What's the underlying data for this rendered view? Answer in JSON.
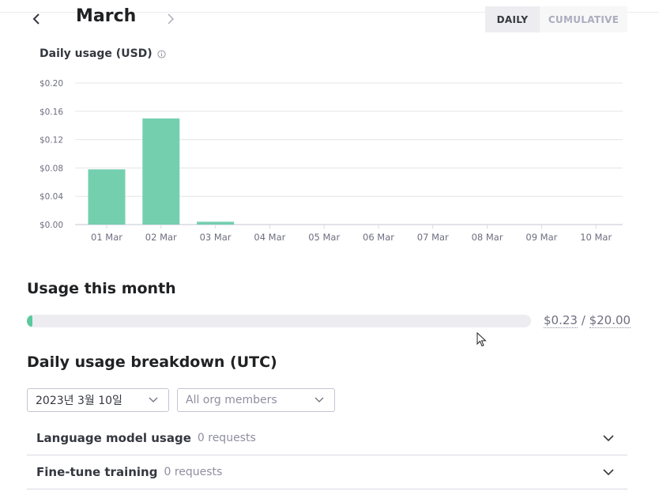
{
  "header": {
    "month": "March",
    "toggle": {
      "daily": "DAILY",
      "cumulative": "CUMULATIVE",
      "selected": "daily"
    }
  },
  "chart_title": "Daily usage (USD)",
  "icons": {
    "prev": "chevron-left-icon",
    "next": "chevron-right-icon",
    "info": "info-icon",
    "dropdown": "chevron-down-icon",
    "cursor": "mouse-cursor-icon"
  },
  "colors": {
    "accent": "#74cfaf",
    "progress": "#5ac99e",
    "grid": "#e5e5ea",
    "axis": "#d9d9e3"
  },
  "chart_data": {
    "type": "bar",
    "categories": [
      "01 Mar",
      "02 Mar",
      "03 Mar",
      "04 Mar",
      "05 Mar",
      "06 Mar",
      "07 Mar",
      "08 Mar",
      "09 Mar",
      "10 Mar"
    ],
    "values": [
      0.078,
      0.15,
      0.004,
      0,
      0,
      0,
      0,
      0,
      0,
      0
    ],
    "title": "Daily usage (USD)",
    "yticks": [
      "$0.00",
      "$0.04",
      "$0.08",
      "$0.12",
      "$0.16",
      "$0.20"
    ],
    "ylim": [
      0,
      0.2
    ],
    "grid": true
  },
  "usage": {
    "title": "Usage this month",
    "used": "$0.23",
    "separator": "/",
    "limit": "$20.00",
    "fraction": 0.0115
  },
  "breakdown": {
    "title": "Daily usage breakdown (UTC)",
    "date_value": "2023년 3월 10일",
    "members_value": "All org members",
    "rows": [
      {
        "title": "Language model usage",
        "count": "0 requests"
      },
      {
        "title": "Fine-tune training",
        "count": "0 requests"
      }
    ]
  }
}
